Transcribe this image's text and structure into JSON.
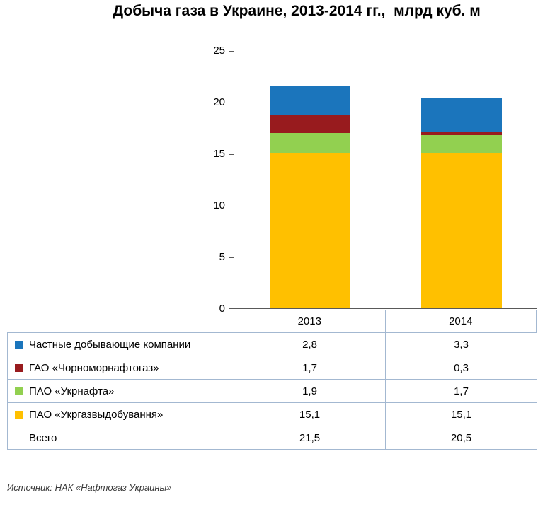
{
  "title": "Добыча газа в Украине, 2013-2014 гг.,  млрд куб. м",
  "source": "Источник: НАК «Нафтогаз Украины»",
  "chart_data": {
    "type": "bar",
    "subtype": "stacked-column",
    "categories": [
      "2013",
      "2014"
    ],
    "series": [
      {
        "name": "Частные добывающие компании",
        "color": "#1B75BC",
        "values": [
          2.8,
          3.3
        ],
        "display": [
          "2,8",
          "3,3"
        ]
      },
      {
        "name": "ГАО «Чорноморнафтогаз»",
        "color": "#981B1E",
        "values": [
          1.7,
          0.3
        ],
        "display": [
          "1,7",
          "0,3"
        ]
      },
      {
        "name": "ПАО «Укрнафта»",
        "color": "#92D050",
        "values": [
          1.9,
          1.7
        ],
        "display": [
          "1,9",
          "1,7"
        ]
      },
      {
        "name": "ПАО «Укргазвыдобування»",
        "color": "#FFC000",
        "values": [
          15.1,
          15.1
        ],
        "display": [
          "15,1",
          "15,1"
        ]
      }
    ],
    "total": {
      "name": "Всего",
      "values": [
        21.5,
        20.5
      ],
      "display": [
        "21,5",
        "20,5"
      ]
    },
    "ylim": [
      0,
      25
    ],
    "yticks": [
      0,
      5,
      10,
      15,
      20,
      25
    ],
    "grid": false,
    "legend_position": "data-table-left",
    "axis_color": "#595959",
    "table_border_color": "#A3B8D1"
  }
}
